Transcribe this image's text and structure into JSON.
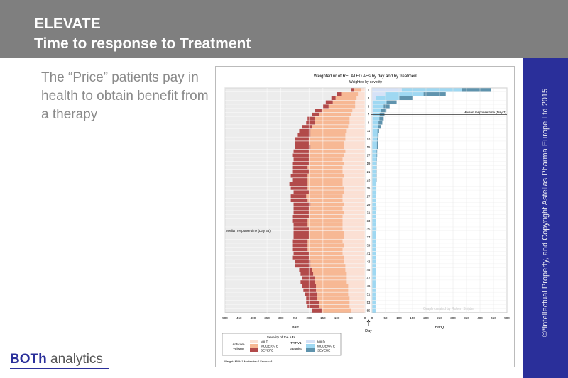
{
  "header": {
    "title": "ELEVATE",
    "subtitle": "Time to response to Treatment"
  },
  "body_text": "The “Price” patients pay in health to obtain benefit from a therapy",
  "copyright": "©*Intellectual Property, and Copyright Astellas Pharma Europe Ltd 2015",
  "logo": {
    "part1": "BOTh",
    "part2": " analytics"
  },
  "colors": {
    "header": "#7f7f7f",
    "side": "#2a2f9a",
    "l_mild": "#fbe0d4",
    "l_mod": "#f7b894",
    "l_sev": "#b24a4a",
    "r_mild": "#d6e2f7",
    "r_mod": "#9fd8f2",
    "r_sev": "#5f93ad"
  },
  "chart_data": {
    "type": "bar",
    "title": "Weighted nr of RELATED AEs by day and by treatment",
    "subtitle": "Weighted by severity",
    "left_xlabel": "bart",
    "right_xlabel": "barQ",
    "center_label": "Day",
    "xlim": [
      0,
      500
    ],
    "ticks": [
      0,
      50,
      100,
      150,
      200,
      250,
      300,
      350,
      400,
      450,
      500
    ],
    "day_labels": [
      "1",
      "3",
      "5",
      "7",
      "9",
      "11",
      "13",
      "15",
      "17",
      "19",
      "21",
      "23",
      "25",
      "27",
      "29",
      "31",
      "33",
      "35",
      "37",
      "39",
      "41",
      "43",
      "45",
      "47",
      "49",
      "51",
      "53",
      "55"
    ],
    "median_left": {
      "label": "Median response time (Day 36)",
      "day": 36
    },
    "median_right": {
      "label": "Median response time (Day 7)",
      "day": 7
    },
    "credit": "Graph created by Robert Snijder",
    "legend": {
      "title": "Severity of the AEs",
      "group1": "Anticon-\nvulsant",
      "group1_a": "Anticon-",
      "group1_b": "vulsant",
      "group2_a": "TRPV1",
      "group2_b": "agonist",
      "mild": "MILD",
      "moderate": "MODERATE",
      "severe": "SEVERE"
    },
    "note": "Weight: Mild=1 Moderate=2 Severe=3",
    "series_order": [
      "MILD",
      "MODERATE",
      "SEVERE"
    ],
    "anticonvulsant": [
      [
        15,
        25,
        10
      ],
      [
        25,
        60,
        15
      ],
      [
        30,
        75,
        15
      ],
      [
        35,
        80,
        25
      ],
      [
        35,
        95,
        20
      ],
      [
        45,
        110,
        25
      ],
      [
        50,
        115,
        25
      ],
      [
        55,
        125,
        25
      ],
      [
        55,
        125,
        30
      ],
      [
        60,
        130,
        35
      ],
      [
        65,
        130,
        40
      ],
      [
        70,
        125,
        45
      ],
      [
        70,
        130,
        50
      ],
      [
        75,
        125,
        50
      ],
      [
        75,
        120,
        55
      ],
      [
        70,
        130,
        55
      ],
      [
        75,
        125,
        60
      ],
      [
        80,
        120,
        55
      ],
      [
        75,
        125,
        60
      ],
      [
        80,
        125,
        55
      ],
      [
        80,
        120,
        60
      ],
      [
        75,
        130,
        60
      ],
      [
        80,
        125,
        55
      ],
      [
        80,
        125,
        65
      ],
      [
        75,
        130,
        60
      ],
      [
        75,
        125,
        55
      ],
      [
        80,
        130,
        55
      ],
      [
        80,
        125,
        60
      ],
      [
        75,
        120,
        60
      ],
      [
        80,
        120,
        55
      ],
      [
        75,
        125,
        55
      ],
      [
        80,
        120,
        60
      ],
      [
        80,
        125,
        55
      ],
      [
        80,
        125,
        50
      ],
      [
        80,
        120,
        55
      ],
      [
        75,
        125,
        55
      ],
      [
        75,
        125,
        55
      ],
      [
        80,
        125,
        55
      ],
      [
        75,
        130,
        55
      ],
      [
        80,
        125,
        55
      ],
      [
        80,
        120,
        55
      ],
      [
        75,
        125,
        60
      ],
      [
        75,
        120,
        55
      ],
      [
        70,
        125,
        55
      ],
      [
        70,
        120,
        45
      ],
      [
        65,
        120,
        45
      ],
      [
        65,
        115,
        45
      ],
      [
        65,
        115,
        50
      ],
      [
        60,
        115,
        50
      ],
      [
        60,
        115,
        45
      ],
      [
        60,
        110,
        45
      ],
      [
        55,
        115,
        40
      ],
      [
        55,
        110,
        45
      ],
      [
        55,
        110,
        40
      ],
      [
        50,
        105,
        35
      ]
    ],
    "trpv1": [
      [
        110,
        222,
        108
      ],
      [
        48,
        143,
        82
      ],
      [
        13,
        88,
        50
      ],
      [
        4,
        50,
        37
      ],
      [
        3,
        40,
        22
      ],
      [
        3,
        30,
        20
      ],
      [
        3,
        25,
        18
      ],
      [
        2,
        25,
        16
      ],
      [
        2,
        22,
        14
      ],
      [
        2,
        20,
        10
      ],
      [
        2,
        18,
        6
      ],
      [
        2,
        18,
        4
      ],
      [
        2,
        17,
        4
      ],
      [
        1,
        17,
        3
      ],
      [
        1,
        17,
        4
      ],
      [
        1,
        16,
        2
      ],
      [
        1,
        16,
        2
      ],
      [
        1,
        16,
        1
      ],
      [
        1,
        15,
        1
      ],
      [
        1,
        15,
        1
      ],
      [
        1,
        15,
        1
      ],
      [
        1,
        15,
        1
      ],
      [
        1,
        15,
        1
      ],
      [
        1,
        15,
        0
      ],
      [
        1,
        15,
        0
      ],
      [
        1,
        15,
        0
      ],
      [
        1,
        14,
        0
      ],
      [
        1,
        14,
        0
      ],
      [
        1,
        14,
        0
      ],
      [
        1,
        14,
        1
      ],
      [
        1,
        14,
        0
      ],
      [
        1,
        14,
        0
      ],
      [
        1,
        14,
        0
      ],
      [
        1,
        14,
        0
      ],
      [
        1,
        14,
        1
      ],
      [
        1,
        14,
        0
      ],
      [
        1,
        14,
        0
      ],
      [
        1,
        14,
        0
      ],
      [
        1,
        14,
        0
      ],
      [
        1,
        13,
        0
      ],
      [
        1,
        13,
        0
      ],
      [
        1,
        13,
        0
      ],
      [
        1,
        13,
        0
      ],
      [
        1,
        13,
        0
      ],
      [
        1,
        13,
        0
      ],
      [
        1,
        13,
        0
      ],
      [
        1,
        12,
        0
      ],
      [
        1,
        12,
        0
      ],
      [
        1,
        12,
        0
      ],
      [
        1,
        12,
        0
      ],
      [
        1,
        12,
        0
      ],
      [
        1,
        12,
        0
      ],
      [
        1,
        12,
        0
      ],
      [
        1,
        12,
        0
      ],
      [
        1,
        12,
        0
      ]
    ]
  }
}
